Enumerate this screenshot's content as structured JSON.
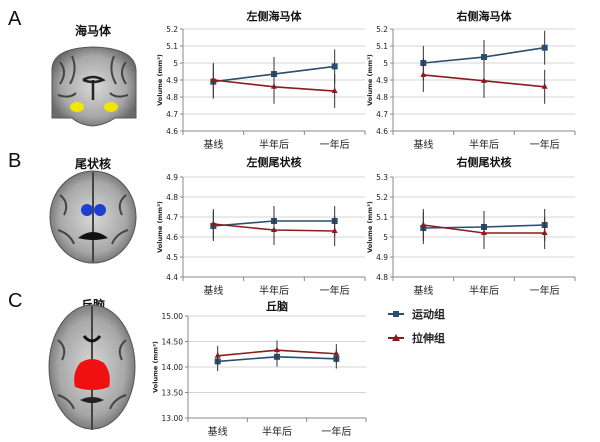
{
  "panels": [
    {
      "letter": "A",
      "region": "海马体",
      "highlight_color": "#f2e600"
    },
    {
      "letter": "B",
      "region": "尾状核",
      "highlight_color": "#1f3fd0"
    },
    {
      "letter": "C",
      "region": "丘脑",
      "highlight_color": "#f01010"
    }
  ],
  "legend": [
    {
      "name": "运动组",
      "color": "#2b4d70",
      "marker": "square"
    },
    {
      "name": "拉伸组",
      "color": "#8a1c1c",
      "marker": "triangle"
    }
  ],
  "chart_data": [
    {
      "type": "line",
      "title": "左侧海马体",
      "ylabel": "Volume (mm³)",
      "categories": [
        "基线",
        "半年后",
        "一年后"
      ],
      "ylim": [
        4.6,
        5.2
      ],
      "yticks": [
        "4.6",
        "4.7",
        "4.8",
        "4.9",
        "5",
        "5.1",
        "5.2"
      ],
      "grid": true,
      "series": [
        {
          "name": "运动组",
          "values": [
            4.89,
            4.935,
            4.98
          ],
          "error": [
            0.1,
            0.1,
            0.1
          ]
        },
        {
          "name": "拉伸组",
          "values": [
            4.9,
            4.86,
            4.835
          ],
          "error": [
            0.1,
            0.1,
            0.1
          ]
        }
      ]
    },
    {
      "type": "line",
      "title": "右侧海马体",
      "ylabel": "Volume (mm³)",
      "categories": [
        "基线",
        "半年后",
        "一年后"
      ],
      "ylim": [
        4.6,
        5.2
      ],
      "yticks": [
        "4.6",
        "4.7",
        "4.8",
        "4.9",
        "5",
        "5.1",
        "5.2"
      ],
      "grid": true,
      "series": [
        {
          "name": "运动组",
          "values": [
            5.0,
            5.035,
            5.09
          ],
          "error": [
            0.1,
            0.1,
            0.1
          ]
        },
        {
          "name": "拉伸组",
          "values": [
            4.93,
            4.895,
            4.86
          ],
          "error": [
            0.1,
            0.1,
            0.1
          ]
        }
      ]
    },
    {
      "type": "line",
      "title": "左侧尾状核",
      "ylabel": "Volume (mm³)",
      "categories": [
        "基线",
        "半年后",
        "一年后"
      ],
      "ylim": [
        4.4,
        4.9
      ],
      "yticks": [
        "4.4",
        "4.5",
        "4.6",
        "4.7",
        "4.8",
        "4.9"
      ],
      "grid": true,
      "series": [
        {
          "name": "运动组",
          "values": [
            4.655,
            4.68,
            4.68
          ],
          "error": [
            0.075,
            0.075,
            0.075
          ]
        },
        {
          "name": "拉伸组",
          "values": [
            4.665,
            4.635,
            4.63
          ],
          "error": [
            0.075,
            0.075,
            0.075
          ]
        }
      ]
    },
    {
      "type": "line",
      "title": "右侧尾状核",
      "ylabel": "Volume (mm³)",
      "categories": [
        "基线",
        "半年后",
        "一年后"
      ],
      "ylim": [
        4.8,
        5.3
      ],
      "yticks": [
        "4.8",
        "4.9",
        "5",
        "5.1",
        "5.2",
        "5.3"
      ],
      "grid": true,
      "series": [
        {
          "name": "运动组",
          "values": [
            5.045,
            5.05,
            5.06
          ],
          "error": [
            0.08,
            0.08,
            0.08
          ]
        },
        {
          "name": "拉伸组",
          "values": [
            5.06,
            5.02,
            5.02
          ],
          "error": [
            0.08,
            0.08,
            0.08
          ]
        }
      ]
    },
    {
      "type": "line",
      "title": "丘脑",
      "ylabel": "Volume (mm³)",
      "categories": [
        "基线",
        "半年后",
        "一年后"
      ],
      "ylim": [
        13.0,
        15.0
      ],
      "yticks": [
        "13.00",
        "13.50",
        "14.00",
        "14.50",
        "15.00"
      ],
      "grid": true,
      "series": [
        {
          "name": "运动组",
          "values": [
            14.11,
            14.2,
            14.16
          ],
          "error": [
            0.19,
            0.19,
            0.19
          ]
        },
        {
          "name": "拉伸组",
          "values": [
            14.22,
            14.33,
            14.26
          ],
          "error": [
            0.19,
            0.19,
            0.19
          ]
        }
      ]
    }
  ]
}
